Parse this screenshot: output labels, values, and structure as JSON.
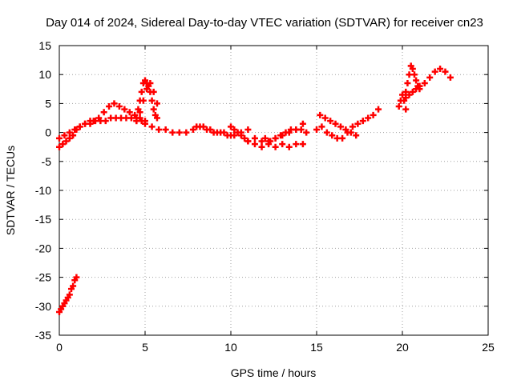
{
  "chart_data": {
    "type": "scatter",
    "title": "Day 014 of 2024, Sidereal Day-to-day VTEC variation (SDTVAR) for receiver cn23",
    "xlabel": "GPS time / hours",
    "ylabel": "SDTVAR / TECUs",
    "xlim": [
      0,
      25
    ],
    "ylim": [
      -35,
      15
    ],
    "xticks": [
      0,
      5,
      10,
      15,
      20,
      25
    ],
    "xtick_labels": [
      "0",
      "5",
      "10",
      "15",
      "20",
      "25"
    ],
    "yticks": [
      15,
      10,
      5,
      0,
      -5,
      -10,
      -15,
      -20,
      -25,
      -30,
      -35
    ],
    "ytick_labels": [
      "15",
      "10",
      "5",
      "0",
      "-5",
      "-10",
      "-15",
      "-20",
      "-25",
      "-30",
      "-35"
    ],
    "grid": true,
    "marker": "plus",
    "series": [
      {
        "name": "SDTVAR",
        "color": "#ff0000",
        "x": [
          0.0,
          0.1,
          0.2,
          0.3,
          0.4,
          0.5,
          0.6,
          0.7,
          0.8,
          0.9,
          1.0,
          0.0,
          0.2,
          0.4,
          0.6,
          0.8,
          1.0,
          1.2,
          1.5,
          1.8,
          2.0,
          2.3,
          2.6,
          2.9,
          3.2,
          3.5,
          3.8,
          4.1,
          4.4,
          4.7,
          5.0,
          0.0,
          0.3,
          0.6,
          0.9,
          1.2,
          1.5,
          1.8,
          2.1,
          2.4,
          2.7,
          3.0,
          3.3,
          3.6,
          3.9,
          4.2,
          4.5,
          4.8,
          4.5,
          4.6,
          4.7,
          4.8,
          4.9,
          5.0,
          5.1,
          5.2,
          5.3,
          5.4,
          5.5,
          5.6,
          5.7,
          4.5,
          4.7,
          4.9,
          5.1,
          5.3,
          5.5,
          5.7,
          5.0,
          5.4,
          5.8,
          6.2,
          6.6,
          7.0,
          7.4,
          7.8,
          8.2,
          8.6,
          9.0,
          9.4,
          9.8,
          10.2,
          10.6,
          11.0,
          11.4,
          11.8,
          12.2,
          12.6,
          13.0,
          13.4,
          13.8,
          14.2,
          8.0,
          8.4,
          8.8,
          9.2,
          9.6,
          10.0,
          10.0,
          10.2,
          10.4,
          10.6,
          10.8,
          11.0,
          11.0,
          11.4,
          11.8,
          12.2,
          12.6,
          13.0,
          13.4,
          13.8,
          14.2,
          12.0,
          12.3,
          12.6,
          12.9,
          13.2,
          13.5,
          13.8,
          14.1,
          14.4,
          15.0,
          15.3,
          15.6,
          15.9,
          16.2,
          16.5,
          16.8,
          17.1,
          17.4,
          17.7,
          18.0,
          18.3,
          18.6,
          15.2,
          15.5,
          15.8,
          16.1,
          16.4,
          16.7,
          17.0,
          17.3,
          19.8,
          19.9,
          20.0,
          20.1,
          20.2,
          20.2,
          20.3,
          20.4,
          20.5,
          20.6,
          20.7,
          20.8,
          20.9,
          21.0,
          20.2,
          20.4,
          20.6,
          20.8,
          21.0,
          21.0,
          21.3,
          21.6,
          21.9,
          22.2,
          22.5,
          22.8
        ],
        "y": [
          -31.0,
          -30.5,
          -30.0,
          -29.5,
          -29.0,
          -28.5,
          -28.0,
          -27.0,
          -26.5,
          -25.5,
          -25.0,
          -2.5,
          -2.0,
          -1.5,
          -1.0,
          -0.5,
          0.5,
          1.0,
          1.5,
          2.0,
          2.0,
          2.5,
          3.5,
          4.5,
          5.0,
          4.5,
          4.0,
          3.5,
          3.0,
          2.5,
          2.0,
          -1.0,
          -0.5,
          0.0,
          0.5,
          1.0,
          1.5,
          1.5,
          2.0,
          2.0,
          2.0,
          2.5,
          2.5,
          2.5,
          2.5,
          2.5,
          2.0,
          2.0,
          2.5,
          4.0,
          5.5,
          7.0,
          8.5,
          9.0,
          8.5,
          8.0,
          7.0,
          5.5,
          4.0,
          3.0,
          2.5,
          2.0,
          3.5,
          5.5,
          7.5,
          8.5,
          7.0,
          5.0,
          1.5,
          1.0,
          0.5,
          0.5,
          0.0,
          0.0,
          0.0,
          0.5,
          1.0,
          0.5,
          0.0,
          0.0,
          -0.5,
          -0.5,
          0.0,
          0.5,
          -1.0,
          -1.5,
          -2.0,
          -2.5,
          -2.0,
          -2.5,
          -2.0,
          -2.0,
          1.0,
          1.0,
          0.5,
          0.0,
          0.0,
          -0.5,
          1.0,
          0.5,
          0.0,
          -0.5,
          -1.0,
          -1.5,
          -1.5,
          -2.0,
          -2.5,
          -1.5,
          -1.0,
          -0.5,
          0.0,
          0.5,
          1.5,
          -1.0,
          -1.5,
          -1.0,
          -0.5,
          0.0,
          0.5,
          0.5,
          0.5,
          0.0,
          0.5,
          1.0,
          0.0,
          -0.5,
          -1.0,
          -1.0,
          0.0,
          1.0,
          1.5,
          2.0,
          2.5,
          3.0,
          4.0,
          3.0,
          2.5,
          2.0,
          1.5,
          1.0,
          0.5,
          0.0,
          -0.5,
          4.5,
          5.5,
          6.5,
          5.5,
          4.0,
          7.0,
          8.5,
          10.0,
          11.5,
          11.0,
          10.0,
          9.0,
          8.0,
          7.5,
          6.0,
          6.5,
          7.0,
          7.5,
          8.0,
          8.0,
          8.5,
          9.5,
          10.5,
          11.0,
          10.5,
          9.5
        ]
      }
    ]
  }
}
